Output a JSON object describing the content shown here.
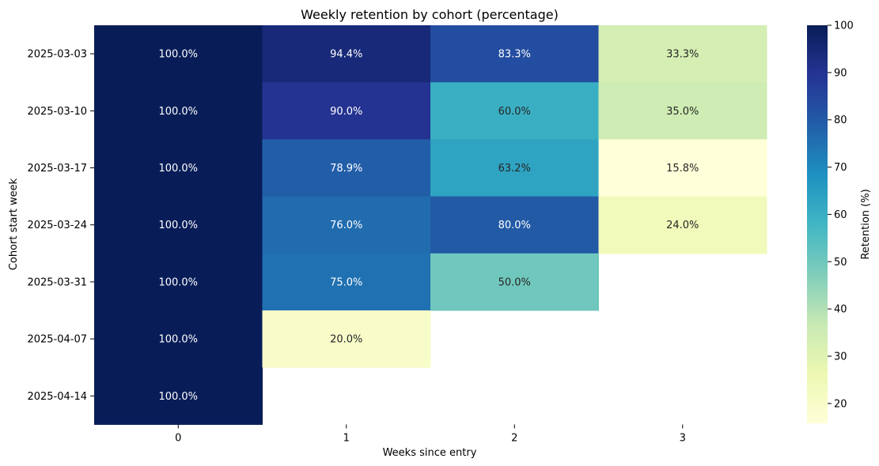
{
  "chart_data": {
    "type": "heatmap",
    "title": "Weekly retention by cohort (percentage)",
    "xlabel": "Weeks since entry",
    "ylabel": "Cohort start week",
    "x_categories": [
      "0",
      "1",
      "2",
      "3"
    ],
    "y_categories": [
      "2025-03-03",
      "2025-03-10",
      "2025-03-17",
      "2025-03-24",
      "2025-03-31",
      "2025-04-07",
      "2025-04-14"
    ],
    "values": [
      [
        100.0,
        94.4,
        83.3,
        33.3
      ],
      [
        100.0,
        90.0,
        60.0,
        35.0
      ],
      [
        100.0,
        78.9,
        63.2,
        15.8
      ],
      [
        100.0,
        76.0,
        80.0,
        24.0
      ],
      [
        100.0,
        75.0,
        50.0,
        null
      ],
      [
        100.0,
        20.0,
        null,
        null
      ],
      [
        100.0,
        null,
        null,
        null
      ]
    ],
    "cell_labels": [
      [
        "100.0%",
        "94.4%",
        "83.3%",
        "33.3%"
      ],
      [
        "100.0%",
        "90.0%",
        "60.0%",
        "35.0%"
      ],
      [
        "100.0%",
        "78.9%",
        "63.2%",
        "15.8%"
      ],
      [
        "100.0%",
        "76.0%",
        "80.0%",
        "24.0%"
      ],
      [
        "100.0%",
        "75.0%",
        "50.0%",
        ""
      ],
      [
        "100.0%",
        "20.0%",
        "",
        ""
      ],
      [
        "100.0%",
        "",
        "",
        ""
      ]
    ],
    "colormap": "YlGnBu",
    "colormap_stops": [
      "#ffffd9",
      "#edf8b1",
      "#c7e9b4",
      "#7fcdbb",
      "#41b6c4",
      "#1d91c0",
      "#225ea8",
      "#253494",
      "#081d58"
    ],
    "value_range": [
      15.8,
      100
    ],
    "colorbar": {
      "label": "Retention (%)",
      "ticks": [
        "20",
        "30",
        "40",
        "50",
        "60",
        "70",
        "80",
        "90",
        "100"
      ]
    },
    "grid": false
  }
}
